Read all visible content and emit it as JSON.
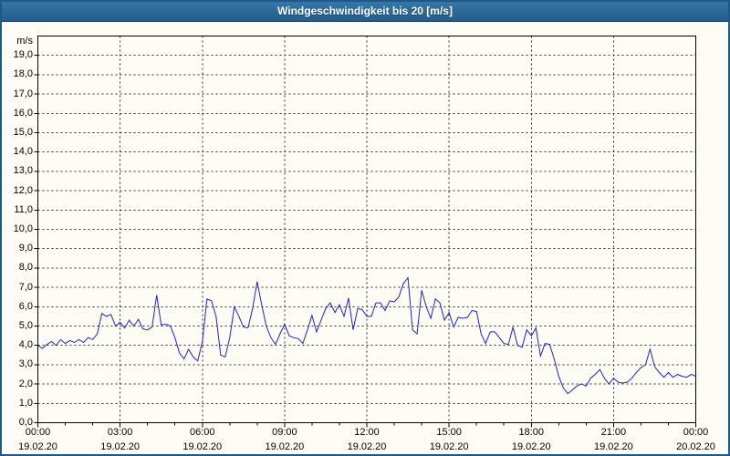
{
  "window": {
    "title": "Windgeschwindigkeit bis 20 [m/s]"
  },
  "colors": {
    "title_bar_top": "#3876a6",
    "title_bar_bottom": "#235d8d",
    "title_text": "#ffffff",
    "window_border": "#1d588c",
    "background": "#fdfdf5",
    "plot_frame": "#000000",
    "gridline": "#2b2b2b",
    "tick": "#000000",
    "series_line": "#2121cc",
    "label_text": "#000000"
  },
  "chart_data": {
    "type": "line",
    "title": "Windgeschwindigkeit bis 20 [m/s]",
    "y_unit": "m/s",
    "ylabel": "m/s",
    "xlabel": "",
    "ylim": [
      0,
      20
    ],
    "ytick_step": 1.0,
    "ytick_labels": [
      "0,0",
      "1,0",
      "2,0",
      "3,0",
      "4,0",
      "5,0",
      "6,0",
      "7,0",
      "8,0",
      "9,0",
      "10,0",
      "11,0",
      "12,0",
      "13,0",
      "14,0",
      "15,0",
      "16,0",
      "17,0",
      "18,0",
      "19,0"
    ],
    "grid": "dashed; horizontal every 1 m/s, vertical every 3 h",
    "legend_position": "none",
    "x_range_hours": 24,
    "minor_xtick_hours": 1,
    "major_xtick_hours": 3,
    "x_start": "19.02.20 00:00",
    "x_end": "20.02.20 00:00",
    "xticks": [
      {
        "time": "00:00",
        "date": "19.02.20"
      },
      {
        "time": "03:00",
        "date": "19.02.20"
      },
      {
        "time": "06:00",
        "date": "19.02.20"
      },
      {
        "time": "09:00",
        "date": "19.02.20"
      },
      {
        "time": "12:00",
        "date": "19.02.20"
      },
      {
        "time": "15:00",
        "date": "19.02.20"
      },
      {
        "time": "18:00",
        "date": "19.02.20"
      },
      {
        "time": "21:00",
        "date": "19.02.20"
      },
      {
        "time": "00:00",
        "date": "20.02.20"
      }
    ],
    "series": [
      {
        "name": "Windgeschwindigkeit",
        "unit": "m/s",
        "interval_minutes": 10,
        "values": [
          4.0,
          3.85,
          4.05,
          4.2,
          4.0,
          4.3,
          4.1,
          4.25,
          4.15,
          4.3,
          4.15,
          4.4,
          4.3,
          4.6,
          5.65,
          5.5,
          5.6,
          5.0,
          5.2,
          4.9,
          5.3,
          5.0,
          5.35,
          4.85,
          4.8,
          4.95,
          6.6,
          5.05,
          5.1,
          5.0,
          4.4,
          3.6,
          3.3,
          3.8,
          3.4,
          3.2,
          4.2,
          6.4,
          6.3,
          5.5,
          3.5,
          3.4,
          4.4,
          6.0,
          5.5,
          4.95,
          4.9,
          5.9,
          7.3,
          6.1,
          5.0,
          4.4,
          4.05,
          4.6,
          5.1,
          4.5,
          4.4,
          4.35,
          4.1,
          4.8,
          5.55,
          4.7,
          5.3,
          5.9,
          6.2,
          5.7,
          6.1,
          5.5,
          6.45,
          4.8,
          5.9,
          5.85,
          5.5,
          5.5,
          6.2,
          6.2,
          5.8,
          6.3,
          6.25,
          6.5,
          7.2,
          7.5,
          4.8,
          4.6,
          6.85,
          6.0,
          5.4,
          6.4,
          6.2,
          5.3,
          5.7,
          4.95,
          5.45,
          5.4,
          5.45,
          5.8,
          5.75,
          4.6,
          4.1,
          4.7,
          4.7,
          4.4,
          4.1,
          4.05,
          4.95,
          4.0,
          3.9,
          4.8,
          4.5,
          4.9,
          3.45,
          4.1,
          4.05,
          3.3,
          2.4,
          1.8,
          1.5,
          1.7,
          1.9,
          2.0,
          1.9,
          2.3,
          2.5,
          2.75,
          2.3,
          2.0,
          2.3,
          2.1,
          2.05,
          2.1,
          2.3,
          2.6,
          2.85,
          3.0,
          3.8,
          2.9,
          2.6,
          2.35,
          2.6,
          2.35,
          2.5,
          2.4,
          2.35,
          2.5,
          2.4
        ]
      }
    ]
  }
}
